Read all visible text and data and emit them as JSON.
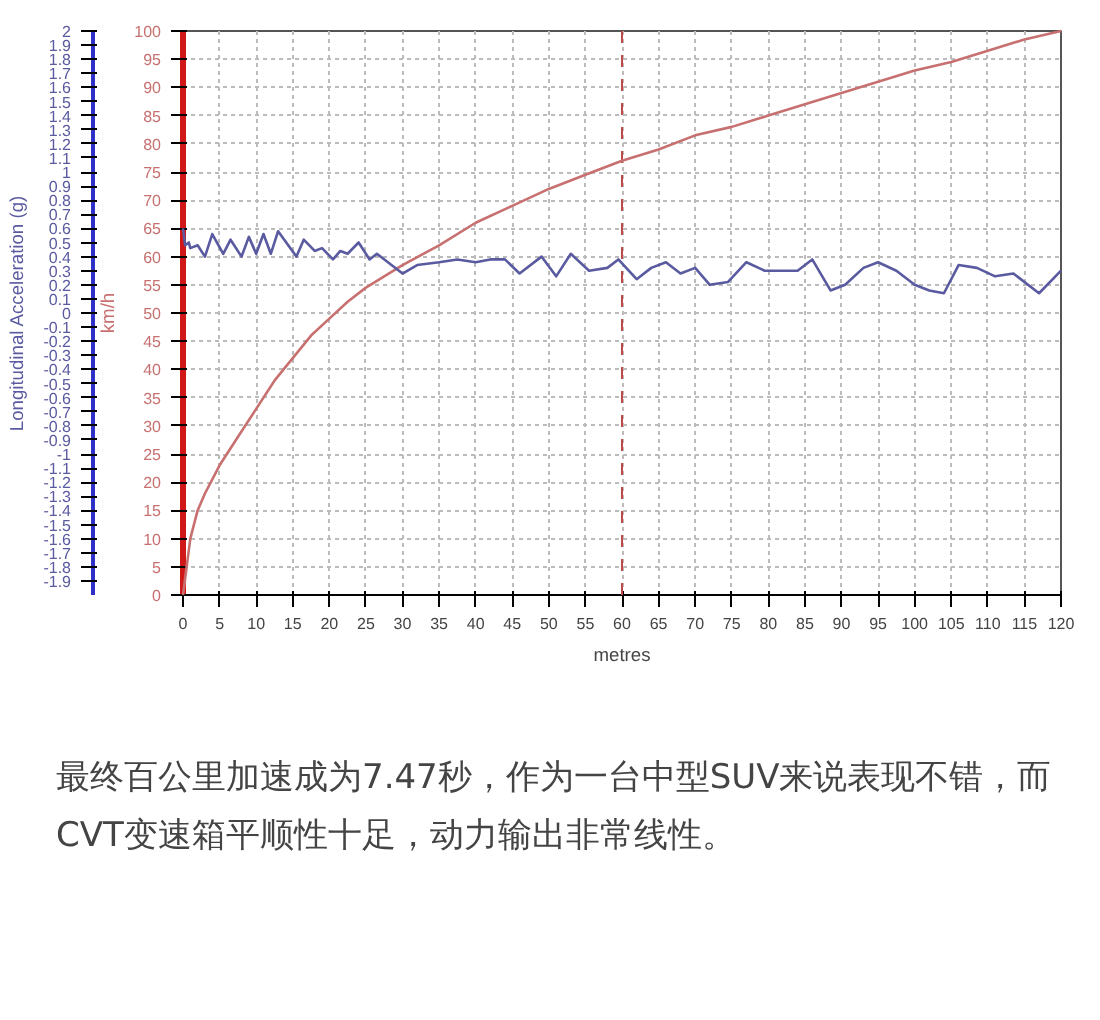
{
  "chart_data": {
    "type": "line",
    "xlabel": "metres",
    "ylabel": "km/h",
    "y2label": "Longitudinal Acceleration (g)",
    "xlim": [
      0,
      120
    ],
    "xticks": [
      0,
      5,
      10,
      15,
      20,
      25,
      30,
      35,
      40,
      45,
      50,
      55,
      60,
      65,
      70,
      75,
      80,
      85,
      90,
      95,
      100,
      105,
      110,
      115,
      120
    ],
    "ylim": [
      0,
      100
    ],
    "yticks": [
      0,
      5,
      10,
      15,
      20,
      25,
      30,
      35,
      40,
      45,
      50,
      55,
      60,
      65,
      70,
      75,
      80,
      85,
      90,
      95,
      100
    ],
    "y2lim": [
      -2,
      2
    ],
    "y2ticks": [
      2,
      1.9,
      1.8,
      1.7,
      1.6,
      1.5,
      1.4,
      1.3,
      1.2,
      1.1,
      1,
      0.9,
      0.8,
      0.7,
      0.6,
      0.5,
      0.4,
      0.3,
      0.2,
      0.1,
      0,
      -0.1,
      -0.2,
      -0.3,
      -0.4,
      -0.5,
      -0.6,
      -0.7,
      -0.8,
      -0.9,
      -1,
      -1.1,
      -1.2,
      -1.3,
      -1.4,
      -1.5,
      -1.6,
      -1.7,
      -1.8,
      -1.9
    ],
    "grid": true,
    "line_style": "solid",
    "ref_lines": [
      {
        "axis": "x",
        "value": 60,
        "color": "#c04848",
        "line_style": "dashed"
      }
    ],
    "series": [
      {
        "color": "#c87070",
        "x": [
          0,
          1,
          2,
          3,
          5,
          7.5,
          10,
          12.5,
          15,
          17.5,
          20,
          22.5,
          25,
          27.5,
          30,
          35,
          40,
          45,
          50,
          55,
          60,
          65,
          70,
          75,
          80,
          85,
          90,
          95,
          100,
          105,
          110,
          115,
          120
        ],
        "values": [
          0,
          10,
          15,
          18,
          23,
          28,
          33,
          38,
          42,
          46,
          49,
          52,
          54.5,
          56.5,
          58.5,
          62,
          66,
          69,
          72,
          74.5,
          77,
          79,
          81.5,
          83,
          85,
          87,
          89,
          91,
          93,
          94.5,
          96.5,
          98.5,
          100
        ]
      },
      {
        "color": "#5a5aa0",
        "axis": "y2",
        "x": [
          0,
          0.3,
          0.8,
          1,
          2,
          2.5,
          3,
          4,
          5.5,
          6.5,
          8,
          9,
          10,
          11,
          12,
          13,
          15.5,
          16.5,
          18,
          19,
          20.5,
          21.5,
          22.5,
          24,
          25.5,
          26.5,
          30,
          32,
          35,
          37.5,
          40,
          42,
          44,
          46,
          49,
          51,
          53,
          55.5,
          58,
          59.5,
          62,
          64,
          66,
          68,
          70,
          72,
          74.5,
          77,
          79.5,
          81.5,
          84,
          86,
          88.5,
          90.5,
          93,
          95,
          97.5,
          100,
          102,
          104,
          106,
          108.5,
          111,
          113.5,
          117,
          120
        ],
        "values": [
          0.6,
          0.48,
          0.5,
          0.46,
          0.48,
          0.44,
          0.4,
          0.56,
          0.42,
          0.52,
          0.4,
          0.54,
          0.42,
          0.56,
          0.42,
          0.58,
          0.4,
          0.52,
          0.44,
          0.46,
          0.38,
          0.44,
          0.42,
          0.5,
          0.38,
          0.42,
          0.28,
          0.34,
          0.36,
          0.38,
          0.36,
          0.38,
          0.38,
          0.28,
          0.4,
          0.26,
          0.42,
          0.3,
          0.32,
          0.38,
          0.24,
          0.32,
          0.36,
          0.28,
          0.32,
          0.2,
          0.22,
          0.36,
          0.3,
          0.3,
          0.3,
          0.38,
          0.16,
          0.2,
          0.32,
          0.36,
          0.3,
          0.2,
          0.16,
          0.14,
          0.34,
          0.32,
          0.26,
          0.28,
          0.14,
          0.3
        ]
      }
    ],
    "annotations": [
      "最终百公里加速成为7.47秒，作为一台中型SUV来说表现不错，而CVT变速箱平顺性十足，动力输出非常线性。"
    ]
  }
}
